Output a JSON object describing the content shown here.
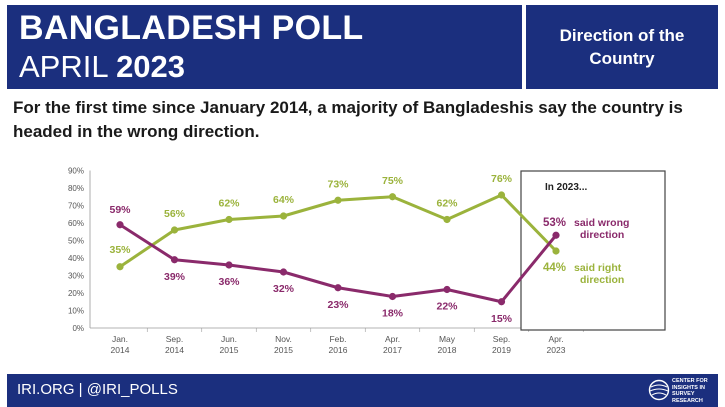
{
  "header": {
    "title_line1": "BANGLADESH POLL",
    "title_line2_prefix": "APRIL ",
    "title_line2_year": "2023",
    "side_label": "Direction of the Country"
  },
  "subtitle": "For the first time since January 2014, a majority of Bangladeshis say the country is headed in the wrong direction.",
  "chart_data": {
    "type": "line",
    "title": "For the first time since January 2014, a majority of Bangladeshis say the country is headed in the wrong direction.",
    "categories": [
      "Jan. 2014",
      "Sep. 2014",
      "Jun. 2015",
      "Nov. 2015",
      "Feb. 2016",
      "Apr. 2017",
      "May 2018",
      "Sep. 2019",
      "Apr. 2023"
    ],
    "category_lines": [
      [
        "Jan.",
        "2014"
      ],
      [
        "Sep.",
        "2014"
      ],
      [
        "Jun.",
        "2015"
      ],
      [
        "Nov.",
        "2015"
      ],
      [
        "Feb.",
        "2016"
      ],
      [
        "Apr.",
        "2017"
      ],
      [
        "May",
        "2018"
      ],
      [
        "Sep.",
        "2019"
      ],
      [
        "Apr.",
        "2023"
      ]
    ],
    "series": [
      {
        "name": "Right direction",
        "color": "#9bb33c",
        "values": [
          35,
          56,
          62,
          64,
          73,
          75,
          62,
          76,
          44
        ],
        "labels": [
          "35%",
          "56%",
          "62%",
          "64%",
          "73%",
          "75%",
          "62%",
          "76%",
          "44%"
        ]
      },
      {
        "name": "Wrong direction",
        "color": "#8a2a6b",
        "values": [
          59,
          39,
          36,
          32,
          23,
          18,
          22,
          15,
          53
        ],
        "labels": [
          "59%",
          "39%",
          "36%",
          "32%",
          "23%",
          "18%",
          "22%",
          "15%",
          "53%"
        ]
      }
    ],
    "yticks": [
      "0%",
      "10%",
      "20%",
      "30%",
      "40%",
      "50%",
      "60%",
      "70%",
      "80%",
      "90%"
    ],
    "ylim": [
      0,
      90
    ],
    "xlabel": "",
    "ylabel": "",
    "grid": false,
    "callout": {
      "heading": "In 2023...",
      "wrong_value": "53%",
      "wrong_text_1": "said wrong",
      "wrong_text_2": "direction",
      "right_value": "44%",
      "right_text_1": "said right",
      "right_text_2": "direction"
    }
  },
  "footer": {
    "text": "IRI.ORG | @IRI_POLLS",
    "logo_text": [
      "CENTER FOR",
      "INSIGHTS IN",
      "SURVEY",
      "RESEARCH"
    ]
  },
  "colors": {
    "navy": "#1b2f7e",
    "green": "#9bb33c",
    "purple": "#8a2a6b"
  }
}
